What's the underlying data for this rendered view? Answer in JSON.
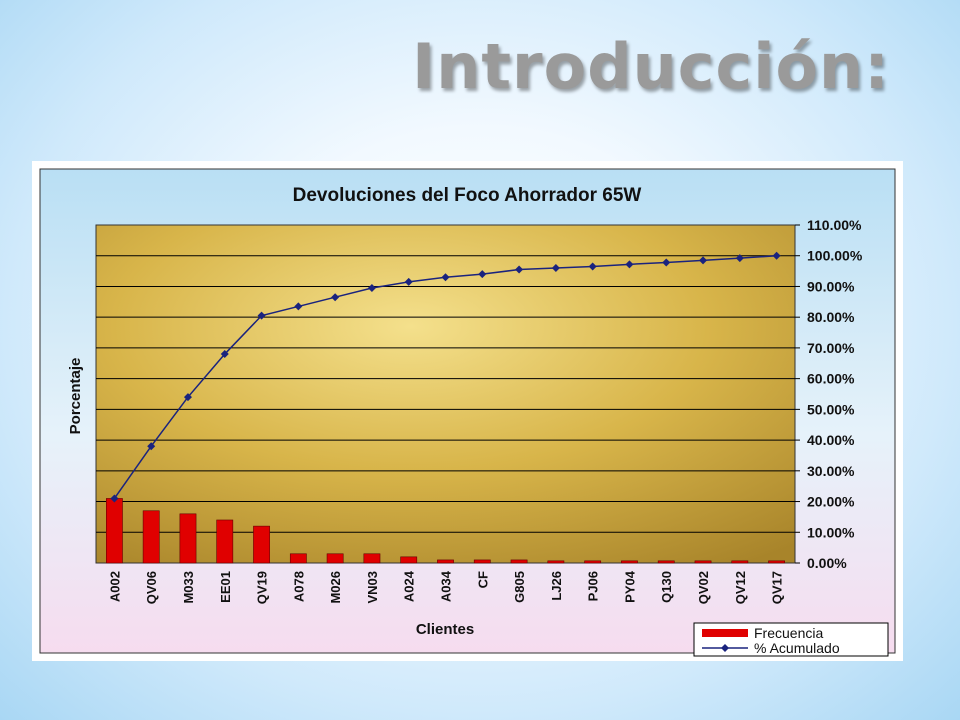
{
  "slide": {
    "title": "Introducción:"
  },
  "colors": {
    "bar": "#e00000",
    "line": "#1a237e",
    "plot_bg": "#d8b54a",
    "gridline": "#000000"
  },
  "chart_data": {
    "type": "bar",
    "title": "Devoluciones del Foco Ahorrador 65W",
    "xlabel": "Clientes",
    "ylabel": "Porcentaje",
    "ylim": [
      0,
      110
    ],
    "y_ticks": [
      "0.00%",
      "10.00%",
      "20.00%",
      "30.00%",
      "40.00%",
      "50.00%",
      "60.00%",
      "70.00%",
      "80.00%",
      "90.00%",
      "100.00%",
      "110.00%"
    ],
    "categories": [
      "A002",
      "QV06",
      "M033",
      "EE01",
      "QV19",
      "A078",
      "M026",
      "VN03",
      "A024",
      "A034",
      "CF",
      "G805",
      "LJ26",
      "PJ06",
      "PY04",
      "Q130",
      "QV02",
      "QV12",
      "QV17"
    ],
    "grid": true,
    "legend_position": "bottom-right",
    "series": [
      {
        "name": "Frecuencia",
        "type": "bar",
        "values": [
          21,
          17,
          16,
          14,
          12,
          3,
          3,
          3,
          2,
          1,
          1,
          1,
          0.7,
          0.7,
          0.7,
          0.7,
          0.7,
          0.7,
          0.7
        ]
      },
      {
        "name": "% Acumulado",
        "type": "line",
        "values": [
          21,
          38,
          54,
          68,
          80.5,
          83.5,
          86.5,
          89.5,
          91.5,
          93,
          94,
          95.5,
          96,
          96.5,
          97.2,
          97.8,
          98.5,
          99.2,
          100
        ]
      }
    ]
  }
}
